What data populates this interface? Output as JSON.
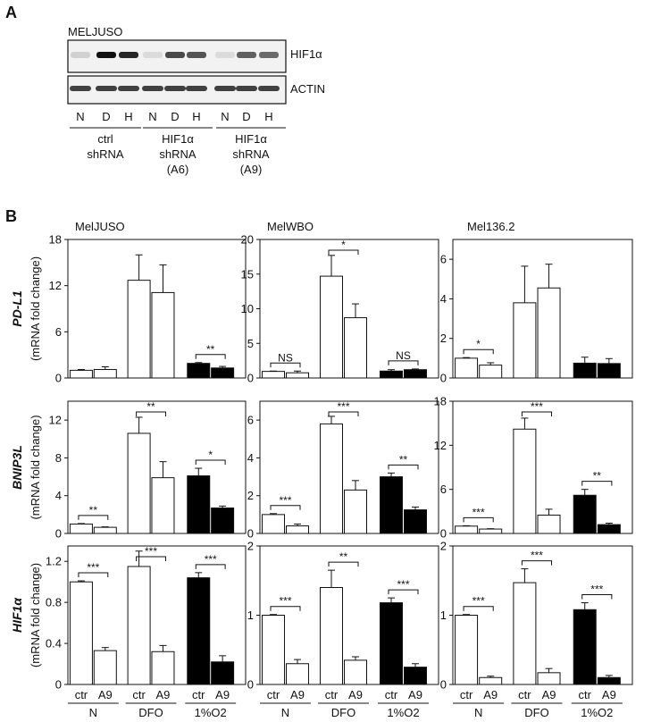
{
  "panel_a": {
    "letter": "A",
    "cell_line": "MELJUSO",
    "blot_labels": [
      "HIF1α",
      "ACTIN"
    ],
    "lane_labels": [
      "N",
      "D",
      "H",
      "N",
      "D",
      "H",
      "N",
      "D",
      "H"
    ],
    "groups": [
      {
        "lines": [
          "ctrl",
          "shRNA"
        ]
      },
      {
        "lines": [
          "HIF1α",
          "shRNA",
          "(A6)"
        ]
      },
      {
        "lines": [
          "HIF1α",
          "shRNA",
          "(A9)"
        ]
      }
    ]
  },
  "panel_b": {
    "letter": "B",
    "columns": [
      "MelJUSO",
      "MelWBO",
      "Mel136.2"
    ],
    "rows": [
      {
        "gene": "PD-L1",
        "unit": "(mRNA fold change)"
      },
      {
        "gene": "BNIP3L",
        "unit": "(mRNA fold change)"
      },
      {
        "gene": "HIF1α",
        "unit": "(mRNA fold change)"
      }
    ],
    "bar_labels": [
      "ctr",
      "A9",
      "ctr",
      "A9",
      "ctr",
      "A9"
    ],
    "conditions": [
      "N",
      "DFO",
      "1%O2"
    ]
  },
  "chart_data": [
    {
      "type": "bar",
      "row": 0,
      "col": 0,
      "ylim": [
        0,
        18
      ],
      "yticks": [
        0,
        6,
        12,
        18
      ],
      "values": [
        1.0,
        1.1,
        12.7,
        11.1,
        1.9,
        1.3
      ],
      "errors": [
        0.1,
        0.35,
        3.3,
        3.6,
        0.1,
        0.2
      ],
      "filled": [
        false,
        false,
        false,
        false,
        true,
        true
      ],
      "annotations": [
        {
          "from": 4,
          "to": 5,
          "label": "**"
        }
      ]
    },
    {
      "type": "bar",
      "row": 0,
      "col": 1,
      "ylim": [
        0,
        20
      ],
      "yticks": [
        0,
        5,
        10,
        15,
        20
      ],
      "values": [
        0.95,
        0.75,
        14.7,
        8.7,
        1.0,
        1.2
      ],
      "errors": [
        0.05,
        0.25,
        3.0,
        2.0,
        0.2,
        0.1
      ],
      "filled": [
        false,
        false,
        false,
        false,
        true,
        true
      ],
      "annotations": [
        {
          "from": 0,
          "to": 1,
          "label": "NS"
        },
        {
          "from": 2,
          "to": 3,
          "label": "*"
        },
        {
          "from": 4,
          "to": 5,
          "label": "NS"
        }
      ]
    },
    {
      "type": "bar",
      "row": 0,
      "col": 2,
      "ylim": [
        0,
        7
      ],
      "yticks": [
        0,
        2,
        4,
        6
      ],
      "values": [
        1.0,
        0.65,
        3.8,
        4.55,
        0.75,
        0.73
      ],
      "errors": [
        0.03,
        0.12,
        1.85,
        1.2,
        0.3,
        0.25
      ],
      "filled": [
        false,
        false,
        false,
        false,
        true,
        true
      ],
      "annotations": [
        {
          "from": 0,
          "to": 1,
          "label": "*"
        }
      ]
    },
    {
      "type": "bar",
      "row": 1,
      "col": 0,
      "ylim": [
        0,
        14
      ],
      "yticks": [
        0,
        4,
        8,
        12
      ],
      "values": [
        1.0,
        0.65,
        10.6,
        5.9,
        6.1,
        2.7
      ],
      "errors": [
        0.05,
        0.05,
        1.7,
        1.7,
        0.8,
        0.2
      ],
      "filled": [
        false,
        false,
        false,
        false,
        true,
        true
      ],
      "annotations": [
        {
          "from": 0,
          "to": 1,
          "label": "**"
        },
        {
          "from": 2,
          "to": 3,
          "label": "**"
        },
        {
          "from": 4,
          "to": 5,
          "label": "*"
        }
      ]
    },
    {
      "type": "bar",
      "row": 1,
      "col": 1,
      "ylim": [
        0,
        7
      ],
      "yticks": [
        0,
        2,
        4,
        6
      ],
      "values": [
        1.0,
        0.4,
        5.8,
        2.3,
        3.0,
        1.25
      ],
      "errors": [
        0.05,
        0.1,
        0.4,
        0.5,
        0.2,
        0.15
      ],
      "filled": [
        false,
        false,
        false,
        false,
        true,
        true
      ],
      "annotations": [
        {
          "from": 0,
          "to": 1,
          "label": "***"
        },
        {
          "from": 2,
          "to": 3,
          "label": "***"
        },
        {
          "from": 4,
          "to": 5,
          "label": "**"
        }
      ]
    },
    {
      "type": "bar",
      "row": 1,
      "col": 2,
      "ylim": [
        0,
        18
      ],
      "yticks": [
        0,
        6,
        12,
        18
      ],
      "values": [
        1.0,
        0.6,
        14.2,
        2.5,
        5.2,
        1.2
      ],
      "errors": [
        0.05,
        0.05,
        1.5,
        0.8,
        0.8,
        0.2
      ],
      "filled": [
        false,
        false,
        false,
        false,
        true,
        true
      ],
      "annotations": [
        {
          "from": 0,
          "to": 1,
          "label": "***"
        },
        {
          "from": 2,
          "to": 3,
          "label": "***"
        },
        {
          "from": 4,
          "to": 5,
          "label": "**"
        }
      ]
    },
    {
      "type": "bar",
      "row": 2,
      "col": 0,
      "ylim": [
        0,
        1.35
      ],
      "yticks": [
        0,
        0.4,
        0.8,
        1.2
      ],
      "values": [
        1.0,
        0.33,
        1.15,
        0.32,
        1.04,
        0.22
      ],
      "errors": [
        0.01,
        0.03,
        0.15,
        0.06,
        0.05,
        0.06
      ],
      "filled": [
        false,
        false,
        false,
        false,
        true,
        true
      ],
      "annotations": [
        {
          "from": 0,
          "to": 1,
          "label": "***"
        },
        {
          "from": 2,
          "to": 3,
          "label": "***"
        },
        {
          "from": 4,
          "to": 5,
          "label": "***"
        }
      ]
    },
    {
      "type": "bar",
      "row": 2,
      "col": 1,
      "ylim": [
        0,
        2
      ],
      "yticks": [
        0,
        1,
        2
      ],
      "values": [
        1.0,
        0.3,
        1.4,
        0.35,
        1.18,
        0.25
      ],
      "errors": [
        0.01,
        0.06,
        0.25,
        0.05,
        0.07,
        0.05
      ],
      "filled": [
        false,
        false,
        false,
        false,
        true,
        true
      ],
      "annotations": [
        {
          "from": 0,
          "to": 1,
          "label": "***"
        },
        {
          "from": 2,
          "to": 3,
          "label": "**"
        },
        {
          "from": 4,
          "to": 5,
          "label": "***"
        }
      ]
    },
    {
      "type": "bar",
      "row": 2,
      "col": 2,
      "ylim": [
        0,
        2
      ],
      "yticks": [
        0,
        1,
        2
      ],
      "values": [
        1.0,
        0.1,
        1.47,
        0.17,
        1.08,
        0.1
      ],
      "errors": [
        0.01,
        0.02,
        0.2,
        0.06,
        0.1,
        0.03
      ],
      "filled": [
        false,
        false,
        false,
        false,
        true,
        true
      ],
      "annotations": [
        {
          "from": 0,
          "to": 1,
          "label": "***"
        },
        {
          "from": 2,
          "to": 3,
          "label": "***"
        },
        {
          "from": 4,
          "to": 5,
          "label": "***"
        }
      ]
    }
  ]
}
